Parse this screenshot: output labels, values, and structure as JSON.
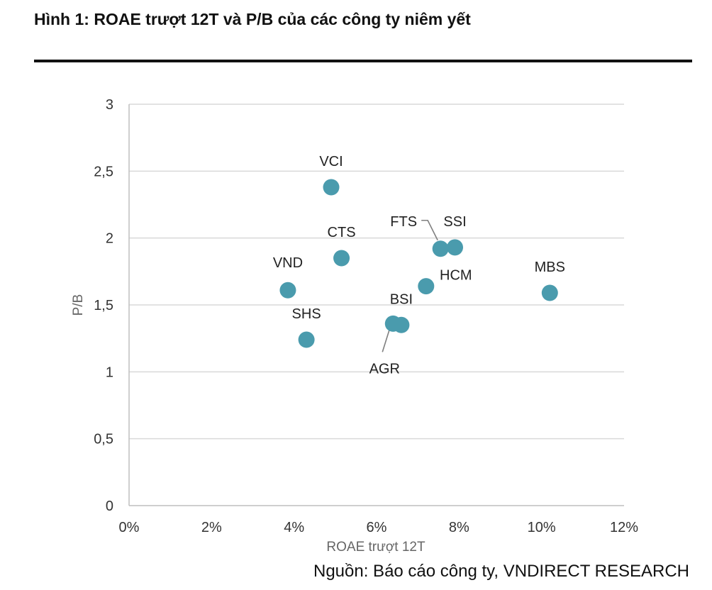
{
  "figure": {
    "title": "Hình 1: ROAE trượt 12T và P/B của các công ty niêm yết",
    "source": "Nguồn: Báo cáo công ty, VNDIRECT RESEARCH"
  },
  "colors": {
    "marker": "#4a9bad",
    "grid": "#d9d9d9",
    "axis": "#bfbfbf",
    "leader": "#7f7f7f"
  },
  "chart_data": {
    "type": "scatter",
    "title": "",
    "xlabel": "ROAE trượt 12T",
    "ylabel": "P/B",
    "xlim": [
      0,
      12
    ],
    "ylim": [
      0,
      3
    ],
    "grid": true,
    "legend": "none",
    "x_ticks": [
      {
        "value": 0,
        "label": "0%"
      },
      {
        "value": 2,
        "label": "2%"
      },
      {
        "value": 4,
        "label": "4%"
      },
      {
        "value": 6,
        "label": "6%"
      },
      {
        "value": 8,
        "label": "8%"
      },
      {
        "value": 10,
        "label": "10%"
      },
      {
        "value": 12,
        "label": "12%"
      }
    ],
    "y_ticks": [
      {
        "value": 0,
        "label": "0"
      },
      {
        "value": 0.5,
        "label": "0,5"
      },
      {
        "value": 1,
        "label": "1"
      },
      {
        "value": 1.5,
        "label": "1,5"
      },
      {
        "value": 2,
        "label": "2"
      },
      {
        "value": 2.5,
        "label": "2,5"
      },
      {
        "value": 3,
        "label": "3"
      }
    ],
    "points": [
      {
        "name": "VCI",
        "x": 4.9,
        "y": 2.38,
        "label_pos": "above"
      },
      {
        "name": "CTS",
        "x": 5.15,
        "y": 1.85,
        "label_pos": "above"
      },
      {
        "name": "VND",
        "x": 3.85,
        "y": 1.61,
        "label_pos": "above-left"
      },
      {
        "name": "SHS",
        "x": 4.3,
        "y": 1.24,
        "label_pos": "above"
      },
      {
        "name": "FTS",
        "x": 7.55,
        "y": 1.92,
        "label_pos": "leader-left"
      },
      {
        "name": "SSI",
        "x": 7.9,
        "y": 1.93,
        "label_pos": "above"
      },
      {
        "name": "HCM",
        "x": 7.2,
        "y": 1.64,
        "label_pos": "above-right"
      },
      {
        "name": "MBS",
        "x": 10.2,
        "y": 1.59,
        "label_pos": "above"
      },
      {
        "name": "BSI",
        "x": 6.6,
        "y": 1.35,
        "label_pos": "above"
      },
      {
        "name": "AGR",
        "x": 6.4,
        "y": 1.36,
        "label_pos": "leader-below"
      }
    ]
  }
}
